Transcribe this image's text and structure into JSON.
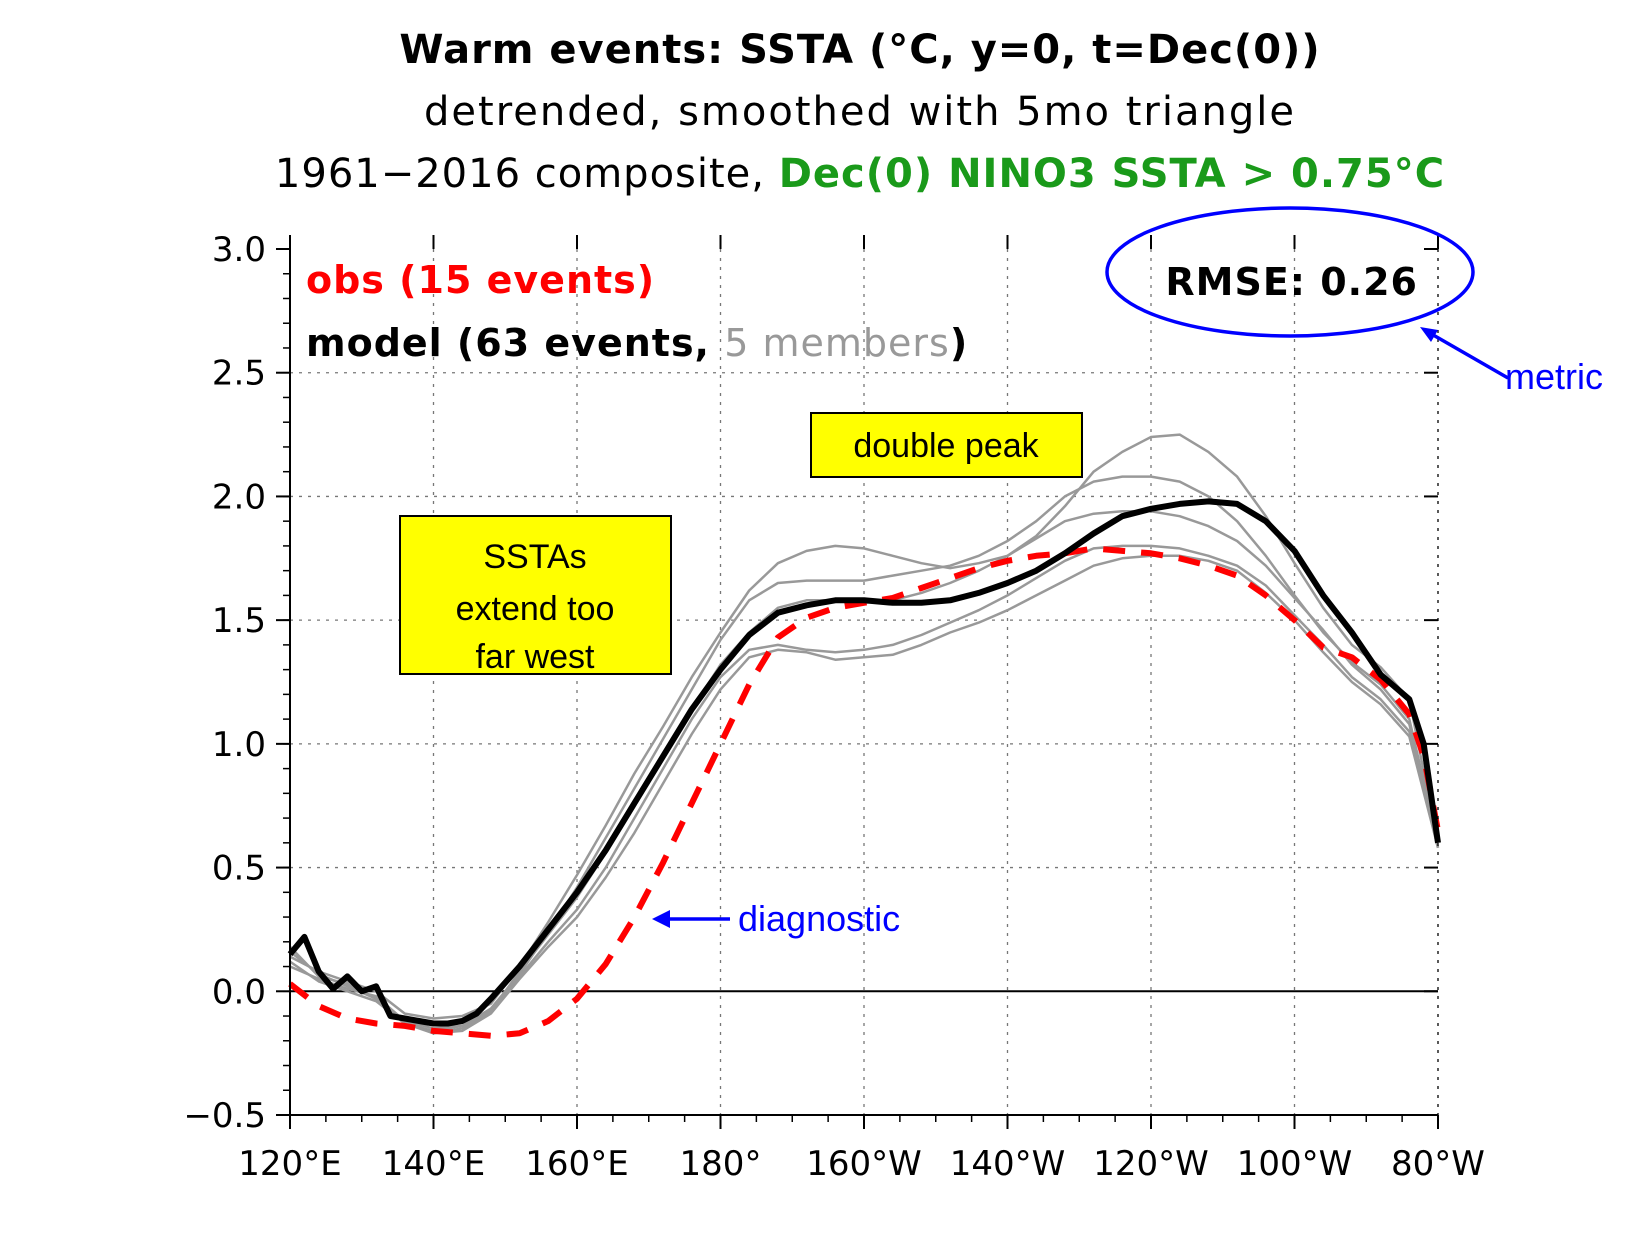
{
  "chart_data": {
    "type": "line",
    "title": {
      "line1": "Warm events: SSTA (°C, y=0, t=Dec(0))",
      "line2": "detrended, smoothed with 5mo triangle",
      "line3_prefix": "1961−2016 composite, ",
      "line3_highlight": "Dec(0) NINO3 SSTA > 0.75°C"
    },
    "xlabel": "",
    "ylabel": "",
    "xlim": [
      120,
      280
    ],
    "ylim": [
      -0.5,
      3.0
    ],
    "x_ticks": [
      {
        "value": 120,
        "label": "120°E"
      },
      {
        "value": 140,
        "label": "140°E"
      },
      {
        "value": 160,
        "label": "160°E"
      },
      {
        "value": 180,
        "label": "180°"
      },
      {
        "value": 200,
        "label": "160°W"
      },
      {
        "value": 220,
        "label": "140°W"
      },
      {
        "value": 240,
        "label": "120°W"
      },
      {
        "value": 260,
        "label": "100°W"
      },
      {
        "value": 280,
        "label": "80°W"
      }
    ],
    "y_ticks": [
      {
        "value": -0.5,
        "label": "−0.5"
      },
      {
        "value": 0.0,
        "label": "0.0"
      },
      {
        "value": 0.5,
        "label": "0.5"
      },
      {
        "value": 1.0,
        "label": "1.0"
      },
      {
        "value": 1.5,
        "label": "1.5"
      },
      {
        "value": 2.0,
        "label": "2.0"
      },
      {
        "value": 2.5,
        "label": "2.5"
      },
      {
        "value": 3.0,
        "label": "3.0"
      }
    ],
    "grid": true,
    "legend": {
      "placement": "top-left",
      "obs_label": "obs (15 events)",
      "model_label_prefix": "model (63 events, ",
      "model_label_members": "5 members",
      "model_label_suffix": ")"
    },
    "colors": {
      "obs": "#ff0000",
      "model": "#000000",
      "members": "#999999",
      "title_highlight": "#1a9a1a",
      "annotation_blue": "#0000ff",
      "box_fill": "#ffff00"
    },
    "series": [
      {
        "name": "obs (15 events)",
        "style": "dashed",
        "x": [
          120,
          124,
          128,
          132,
          136,
          140,
          144,
          148,
          152,
          156,
          160,
          164,
          168,
          172,
          176,
          180,
          184,
          188,
          192,
          196,
          200,
          204,
          208,
          212,
          216,
          220,
          224,
          228,
          232,
          236,
          240,
          244,
          248,
          252,
          256,
          260,
          264,
          268,
          272,
          276,
          278,
          280
        ],
        "values": [
          0.03,
          -0.06,
          -0.11,
          -0.13,
          -0.14,
          -0.16,
          -0.17,
          -0.18,
          -0.17,
          -0.12,
          -0.03,
          0.11,
          0.3,
          0.52,
          0.76,
          1.0,
          1.24,
          1.43,
          1.51,
          1.55,
          1.57,
          1.59,
          1.63,
          1.67,
          1.71,
          1.74,
          1.76,
          1.77,
          1.79,
          1.78,
          1.77,
          1.75,
          1.72,
          1.68,
          1.6,
          1.5,
          1.39,
          1.35,
          1.26,
          1.12,
          0.95,
          0.65
        ]
      },
      {
        "name": "model (63 events, 5 members)",
        "style": "bold",
        "x": [
          120,
          122,
          124,
          126,
          128,
          130,
          132,
          134,
          136,
          138,
          140,
          142,
          144,
          146,
          148,
          152,
          156,
          160,
          164,
          168,
          172,
          176,
          180,
          184,
          188,
          192,
          196,
          200,
          204,
          208,
          212,
          216,
          220,
          224,
          228,
          232,
          236,
          240,
          244,
          248,
          252,
          256,
          260,
          264,
          268,
          272,
          276,
          278,
          280
        ],
        "values": [
          0.15,
          0.22,
          0.08,
          0.01,
          0.06,
          0.0,
          0.02,
          -0.1,
          -0.11,
          -0.12,
          -0.13,
          -0.13,
          -0.12,
          -0.09,
          -0.03,
          0.1,
          0.25,
          0.4,
          0.57,
          0.76,
          0.95,
          1.14,
          1.3,
          1.44,
          1.53,
          1.56,
          1.58,
          1.58,
          1.57,
          1.57,
          1.58,
          1.61,
          1.65,
          1.7,
          1.77,
          1.85,
          1.92,
          1.95,
          1.97,
          1.98,
          1.97,
          1.9,
          1.78,
          1.6,
          1.45,
          1.28,
          1.18,
          1.0,
          0.6
        ]
      }
    ],
    "member_series": [
      {
        "x": [
          120,
          124,
          128,
          132,
          136,
          140,
          144,
          148,
          152,
          156,
          160,
          164,
          168,
          172,
          176,
          180,
          184,
          188,
          192,
          196,
          200,
          204,
          208,
          212,
          216,
          220,
          224,
          228,
          232,
          236,
          240,
          244,
          248,
          252,
          256,
          260,
          264,
          268,
          272,
          276,
          280
        ],
        "values": [
          0.14,
          0.08,
          0.04,
          0.0,
          -0.09,
          -0.11,
          -0.1,
          -0.05,
          0.1,
          0.28,
          0.47,
          0.67,
          0.88,
          1.07,
          1.27,
          1.45,
          1.62,
          1.73,
          1.78,
          1.8,
          1.79,
          1.76,
          1.73,
          1.71,
          1.73,
          1.76,
          1.84,
          1.96,
          2.1,
          2.18,
          2.24,
          2.25,
          2.18,
          2.08,
          1.92,
          1.73,
          1.55,
          1.4,
          1.31,
          1.18,
          0.6
        ]
      },
      {
        "x": [
          120,
          124,
          128,
          132,
          136,
          140,
          144,
          148,
          152,
          156,
          160,
          164,
          168,
          172,
          176,
          180,
          184,
          188,
          192,
          196,
          200,
          204,
          208,
          212,
          216,
          220,
          224,
          228,
          232,
          236,
          240,
          244,
          248,
          252,
          256,
          260,
          264,
          268,
          272,
          276,
          280
        ],
        "values": [
          0.18,
          0.06,
          0.03,
          -0.03,
          -0.12,
          -0.15,
          -0.14,
          -0.07,
          0.07,
          0.24,
          0.42,
          0.62,
          0.82,
          1.02,
          1.22,
          1.42,
          1.58,
          1.65,
          1.66,
          1.66,
          1.66,
          1.68,
          1.7,
          1.72,
          1.76,
          1.82,
          1.9,
          2.0,
          2.06,
          2.08,
          2.08,
          2.06,
          2.0,
          1.9,
          1.76,
          1.6,
          1.45,
          1.33,
          1.24,
          1.1,
          0.6
        ]
      },
      {
        "x": [
          120,
          124,
          128,
          132,
          136,
          140,
          144,
          148,
          152,
          156,
          160,
          164,
          168,
          172,
          176,
          180,
          184,
          188,
          192,
          196,
          200,
          204,
          208,
          212,
          216,
          220,
          224,
          228,
          232,
          236,
          240,
          244,
          248,
          252,
          256,
          260,
          264,
          268,
          272,
          276,
          280
        ],
        "values": [
          0.12,
          0.04,
          0.0,
          -0.04,
          -0.13,
          -0.16,
          -0.14,
          -0.08,
          0.08,
          0.23,
          0.38,
          0.56,
          0.76,
          0.96,
          1.14,
          1.32,
          1.45,
          1.55,
          1.58,
          1.58,
          1.57,
          1.58,
          1.61,
          1.65,
          1.7,
          1.76,
          1.83,
          1.9,
          1.93,
          1.94,
          1.94,
          1.92,
          1.88,
          1.82,
          1.72,
          1.59,
          1.46,
          1.32,
          1.22,
          1.08,
          0.6
        ]
      },
      {
        "x": [
          120,
          124,
          128,
          132,
          136,
          140,
          144,
          148,
          152,
          156,
          160,
          164,
          168,
          172,
          176,
          180,
          184,
          188,
          192,
          196,
          200,
          204,
          208,
          212,
          216,
          220,
          224,
          228,
          232,
          236,
          240,
          244,
          248,
          252,
          256,
          260,
          264,
          268,
          272,
          276,
          280
        ],
        "values": [
          0.1,
          0.05,
          0.01,
          -0.02,
          -0.12,
          -0.17,
          -0.15,
          -0.08,
          0.06,
          0.2,
          0.33,
          0.5,
          0.7,
          0.9,
          1.1,
          1.27,
          1.38,
          1.4,
          1.38,
          1.37,
          1.38,
          1.4,
          1.44,
          1.49,
          1.54,
          1.6,
          1.67,
          1.74,
          1.79,
          1.8,
          1.8,
          1.79,
          1.76,
          1.72,
          1.64,
          1.52,
          1.4,
          1.27,
          1.18,
          1.05,
          0.58
        ]
      },
      {
        "x": [
          120,
          124,
          128,
          132,
          136,
          140,
          144,
          148,
          152,
          156,
          160,
          164,
          168,
          172,
          176,
          180,
          184,
          188,
          192,
          196,
          200,
          204,
          208,
          212,
          216,
          220,
          224,
          228,
          232,
          236,
          240,
          244,
          248,
          252,
          256,
          260,
          264,
          268,
          272,
          276,
          280
        ],
        "values": [
          0.16,
          0.07,
          0.02,
          -0.03,
          -0.13,
          -0.17,
          -0.16,
          -0.09,
          0.05,
          0.18,
          0.3,
          0.46,
          0.64,
          0.84,
          1.04,
          1.22,
          1.35,
          1.38,
          1.37,
          1.34,
          1.35,
          1.36,
          1.4,
          1.45,
          1.49,
          1.54,
          1.6,
          1.66,
          1.72,
          1.75,
          1.76,
          1.76,
          1.74,
          1.7,
          1.61,
          1.5,
          1.37,
          1.25,
          1.16,
          1.03,
          0.58
        ]
      }
    ],
    "annotations": {
      "rmse": "RMSE: 0.26",
      "metric": "metric",
      "double_peak": "double peak",
      "ssta_line1": "SSTAs",
      "ssta_line2": "extend too",
      "ssta_line3": "far west",
      "diagnostic": "diagnostic"
    }
  }
}
